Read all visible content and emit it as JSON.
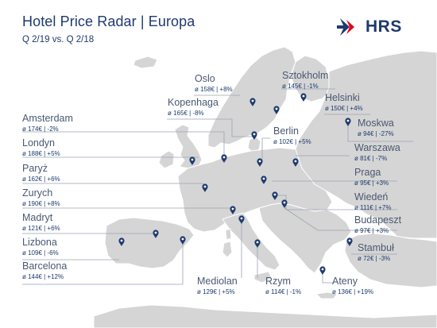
{
  "header": {
    "title": "Hotel Price Radar | Europa",
    "subtitle": "Q 2/19 vs. Q 2/18",
    "logo_text": "HRS"
  },
  "colors": {
    "land": "#d5d5d5",
    "border": "#ffffff",
    "navy": "#1e3a6e",
    "leader": "#9aa3b1",
    "label_grey": "#4a5872",
    "logo_red": "#e2001a"
  },
  "cities": [
    {
      "id": "oslo",
      "name": "Oslo",
      "stat": "ø 158€ | +8%"
    },
    {
      "id": "sztokholm",
      "name": "Sztokholm",
      "stat": "ø 145€ | -1%"
    },
    {
      "id": "helsinki",
      "name": "Helsinki",
      "stat": "ø 150€ | +4%"
    },
    {
      "id": "kopenhaga",
      "name": "Kopenhaga",
      "stat": "ø 165€ | -8%"
    },
    {
      "id": "amsterdam",
      "name": "Amsterdam",
      "stat": "ø 174€ | -2%"
    },
    {
      "id": "moskwa",
      "name": "Moskwa",
      "stat": "ø 94€ | -27%"
    },
    {
      "id": "berlin",
      "name": "Berlin",
      "stat": "ø 102€ | +5%"
    },
    {
      "id": "londyn",
      "name": "Londyn",
      "stat": "ø 188€ | +5%"
    },
    {
      "id": "warszawa",
      "name": "Warszawa",
      "stat": "ø 81€ | -7%"
    },
    {
      "id": "paryz",
      "name": "Paryż",
      "stat": "ø 162€ | +6%"
    },
    {
      "id": "praga",
      "name": "Praga",
      "stat": "ø 95€ | +3%"
    },
    {
      "id": "zurych",
      "name": "Zurych",
      "stat": "ø 190€ | +8%"
    },
    {
      "id": "wieden",
      "name": "Wiedeń",
      "stat": "ø 111€ | +7%"
    },
    {
      "id": "madryt",
      "name": "Madryt",
      "stat": "ø 121€ | +6%"
    },
    {
      "id": "budapeszt",
      "name": "Budapeszt",
      "stat": "ø 97€ | +3%"
    },
    {
      "id": "lizbona",
      "name": "Lizbona",
      "stat": "ø 109€ | -6%"
    },
    {
      "id": "stambul",
      "name": "Stambuł",
      "stat": "ø 72€ | -3%"
    },
    {
      "id": "barcelona",
      "name": "Barcelona",
      "stat": "ø 144€ | +12%"
    },
    {
      "id": "mediolan",
      "name": "Mediolan",
      "stat": "ø 129€ | +5%"
    },
    {
      "id": "rzym",
      "name": "Rzym",
      "stat": "ø 114€ | -1%"
    },
    {
      "id": "ateny",
      "name": "Ateny",
      "stat": "ø 136€ | +19%"
    }
  ]
}
